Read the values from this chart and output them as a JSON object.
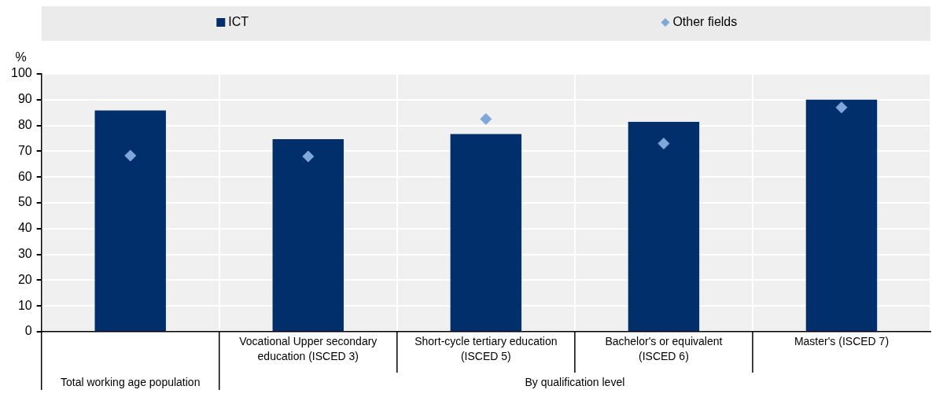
{
  "chart_data": {
    "type": "bar",
    "ylabel": "%",
    "categories": [
      null,
      "Vocational Upper secondary education (ISCED 3)",
      "Short-cycle tertiary education (ISCED 5)",
      "Bachelor's or equivalent (ISCED 6)",
      "Master's (ISCED 7)"
    ],
    "series": [
      {
        "name": "ICT",
        "color": "#002f6c",
        "values": [
          85.8,
          74.7,
          76.7,
          81.4,
          90
        ]
      },
      {
        "name": "Other fields",
        "type": "scatter",
        "marker": "diamond",
        "color": "#7fa7da",
        "values": [
          68.3,
          68,
          82.5,
          73,
          87
        ]
      }
    ],
    "ylim": [
      0,
      100
    ],
    "yticks": [
      0,
      10,
      20,
      30,
      40,
      50,
      60,
      70,
      80,
      90,
      100
    ],
    "grid": true,
    "legend": "top",
    "annotations": [
      "Total working age population",
      "By qualification level"
    ]
  }
}
